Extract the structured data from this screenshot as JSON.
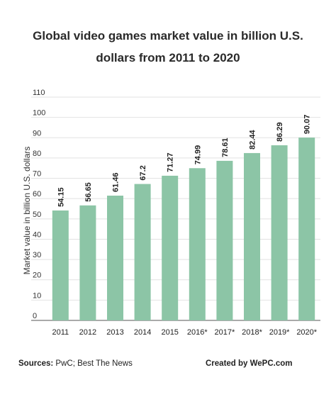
{
  "chart_data": {
    "type": "bar",
    "title_line1": "Global video games market value in billion U.S.",
    "title_line2": "dollars from 2011 to 2020",
    "xlabel": "",
    "ylabel": "Market value in billion U.S. dollars",
    "ylim": [
      0,
      110
    ],
    "yticks": [
      0,
      10,
      20,
      30,
      40,
      50,
      60,
      70,
      80,
      90,
      100,
      110
    ],
    "grid": true,
    "categories": [
      "2011",
      "2012",
      "2013",
      "2014",
      "2015",
      "2016*",
      "2017*",
      "2018*",
      "2019*",
      "2020*"
    ],
    "values": [
      54.15,
      56.65,
      61.46,
      67.2,
      71.27,
      74.99,
      78.61,
      82.44,
      86.29,
      90.07
    ],
    "value_labels": [
      "54.15",
      "56.65",
      "61.46",
      "67.2",
      "71.27",
      "74.99",
      "78.61",
      "82.44",
      "86.29",
      "90.07"
    ],
    "bar_color": "#8cc5a6"
  },
  "footer": {
    "sources_label": "Sources:",
    "sources_text": " PwC; Best The News",
    "credit": "Created by WePC.com"
  }
}
